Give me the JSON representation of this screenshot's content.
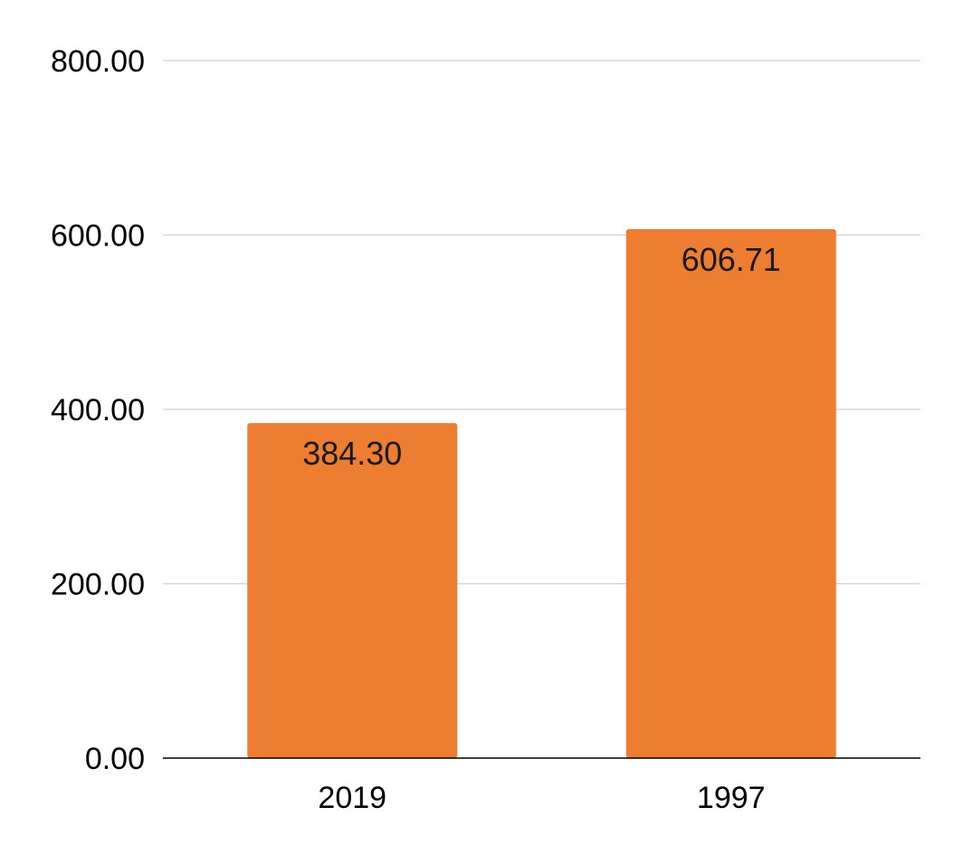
{
  "chart_data": {
    "type": "bar",
    "title": "",
    "xlabel": "",
    "ylabel": "",
    "categories": [
      "2019",
      "1997"
    ],
    "values": [
      384.3,
      606.71
    ],
    "value_labels": [
      "384.30",
      "606.71"
    ],
    "ylim": [
      0,
      800
    ],
    "yticks": [
      0,
      200,
      400,
      600,
      800
    ],
    "ytick_labels": [
      "0.00",
      "200.00",
      "400.00",
      "600.00",
      "800.00"
    ],
    "grid": true,
    "legend": "none",
    "colors": {
      "bar": "#ED7D31",
      "grid": "#D0D0D0",
      "axis": "#000000"
    }
  }
}
